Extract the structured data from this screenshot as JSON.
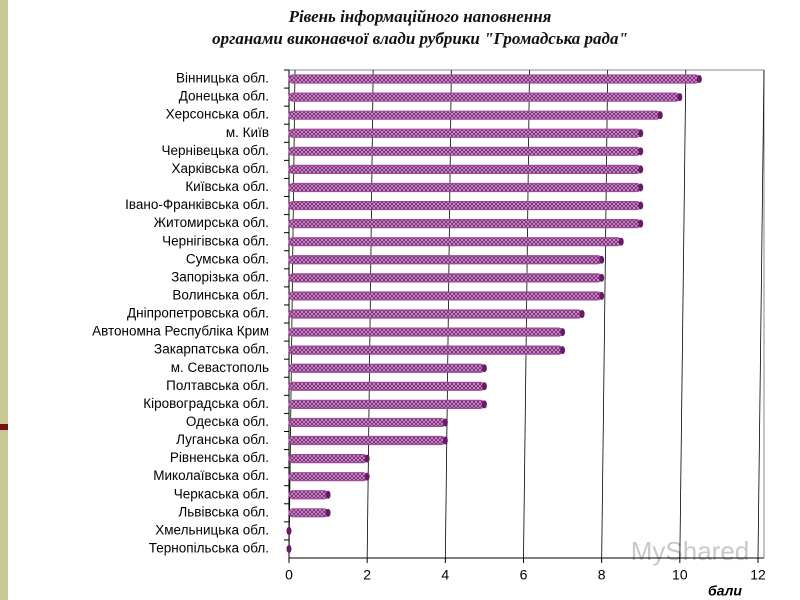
{
  "chart_data": {
    "type": "bar",
    "orientation": "horizontal",
    "title": [
      "Рівень інформаційного наповнення",
      "органами виконавчої влади рубрики \"Громадська рада\""
    ],
    "x_label": "бали",
    "watermark": "MyShared",
    "categories": [
      "Вінницька обл.",
      "Донецька обл.",
      "Херсонська обл.",
      "м. Київ",
      "Чернівецька обл.",
      "Харківська обл.",
      "Київська обл.",
      "Івано-Франківська обл.",
      "Житомирська обл.",
      "Чернігівська обл.",
      "Сумська обл.",
      "Запорізька обл.",
      "Волинська обл.",
      "Дніпропетровська обл.",
      "Автономна Республіка Крим",
      "Закарпатська обл.",
      "м. Севастополь",
      "Полтавська обл.",
      "Кіровоградська обл.",
      "Одеська обл.",
      "Луганська обл.",
      "Рівненська обл.",
      "Миколаївська обл.",
      "Черкаська обл.",
      "Львівська обл.",
      "Хмельницька обл.",
      "Тернопільська обл."
    ],
    "values": [
      10.5,
      10,
      9.5,
      9,
      9,
      9,
      9,
      9,
      9,
      8.5,
      8,
      8,
      8,
      7.5,
      7,
      7,
      5,
      5,
      5,
      4,
      4,
      2,
      2,
      1,
      1,
      0,
      0
    ],
    "color": "#a0489c",
    "xlim": [
      0,
      12
    ],
    "xticks": [
      0,
      2,
      4,
      6,
      8,
      10,
      12
    ],
    "grid": true
  }
}
